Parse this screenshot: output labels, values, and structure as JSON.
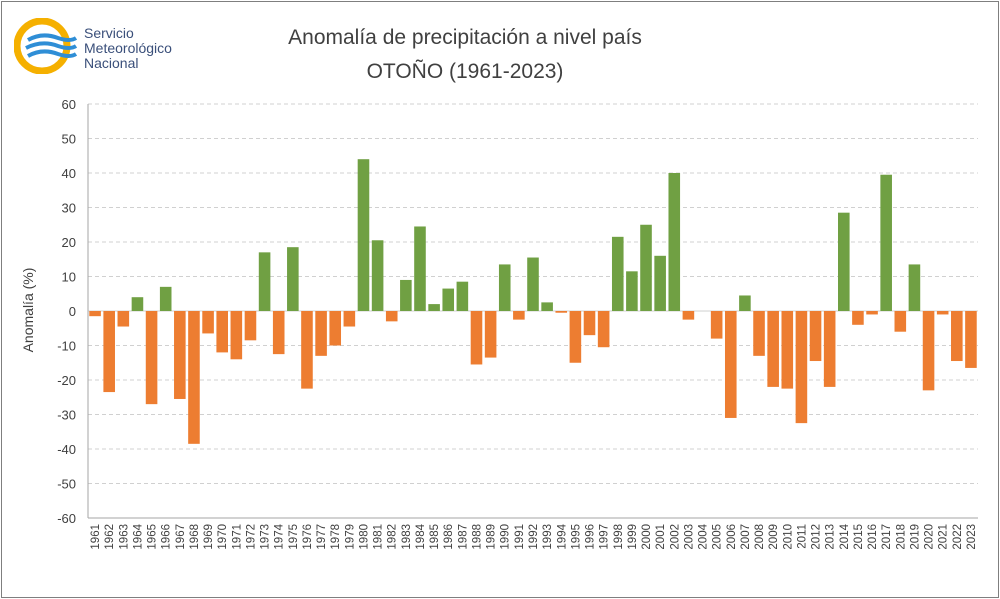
{
  "logo": {
    "line1": "Servicio",
    "line2": "Meteorológico",
    "line3": "Nacional",
    "icon": "smn-logo-icon"
  },
  "colors": {
    "positive": "#70a043",
    "negative": "#ed7d31",
    "grid": "#d0d0d0",
    "axis_text": "#404040"
  },
  "chart_data": {
    "type": "bar",
    "title": "Anomalía de precipitación a nivel país",
    "subtitle": "OTOÑO (1961-2023)",
    "xlabel": "",
    "ylabel": "Anomalía (%)",
    "ylim": [
      -60,
      60
    ],
    "yticks": [
      60,
      50,
      40,
      30,
      20,
      10,
      0,
      -10,
      -20,
      -30,
      -40,
      -50,
      -60
    ],
    "grid": true,
    "categories": [
      "1961",
      "1962",
      "1963",
      "1964",
      "1965",
      "1966",
      "1967",
      "1968",
      "1969",
      "1970",
      "1971",
      "1972",
      "1973",
      "1974",
      "1975",
      "1976",
      "1977",
      "1978",
      "1979",
      "1980",
      "1981",
      "1982",
      "1983",
      "1984",
      "1985",
      "1986",
      "1987",
      "1988",
      "1989",
      "1990",
      "1991",
      "1992",
      "1993",
      "1994",
      "1995",
      "1996",
      "1997",
      "1998",
      "1999",
      "2000",
      "2001",
      "2002",
      "2003",
      "2004",
      "2005",
      "2006",
      "2007",
      "2008",
      "2009",
      "2010",
      "2011",
      "2012",
      "2013",
      "2014",
      "2015",
      "2016",
      "2017",
      "2018",
      "2019",
      "2020",
      "2021",
      "2022",
      "2023"
    ],
    "values": [
      -1.5,
      -23.5,
      -4.5,
      4,
      -27,
      7,
      -25.5,
      -38.5,
      -6.5,
      -12,
      -14,
      -8.5,
      17,
      -12.5,
      18.5,
      -22.5,
      -13,
      -10,
      -4.5,
      44,
      20.5,
      -3,
      9,
      24.5,
      2,
      6.5,
      8.5,
      -15.5,
      -13.5,
      13.5,
      -2.5,
      15.5,
      2.5,
      -0.5,
      -15,
      -7,
      -10.5,
      21.5,
      11.5,
      25,
      16,
      40,
      -2.5,
      0,
      -8,
      -31,
      4.5,
      -13,
      -22,
      -22.5,
      -32.5,
      -14.5,
      -22,
      28.5,
      -4,
      -1,
      39.5,
      -6,
      13.5,
      -23,
      -1,
      -14.5,
      -16.5
    ]
  }
}
